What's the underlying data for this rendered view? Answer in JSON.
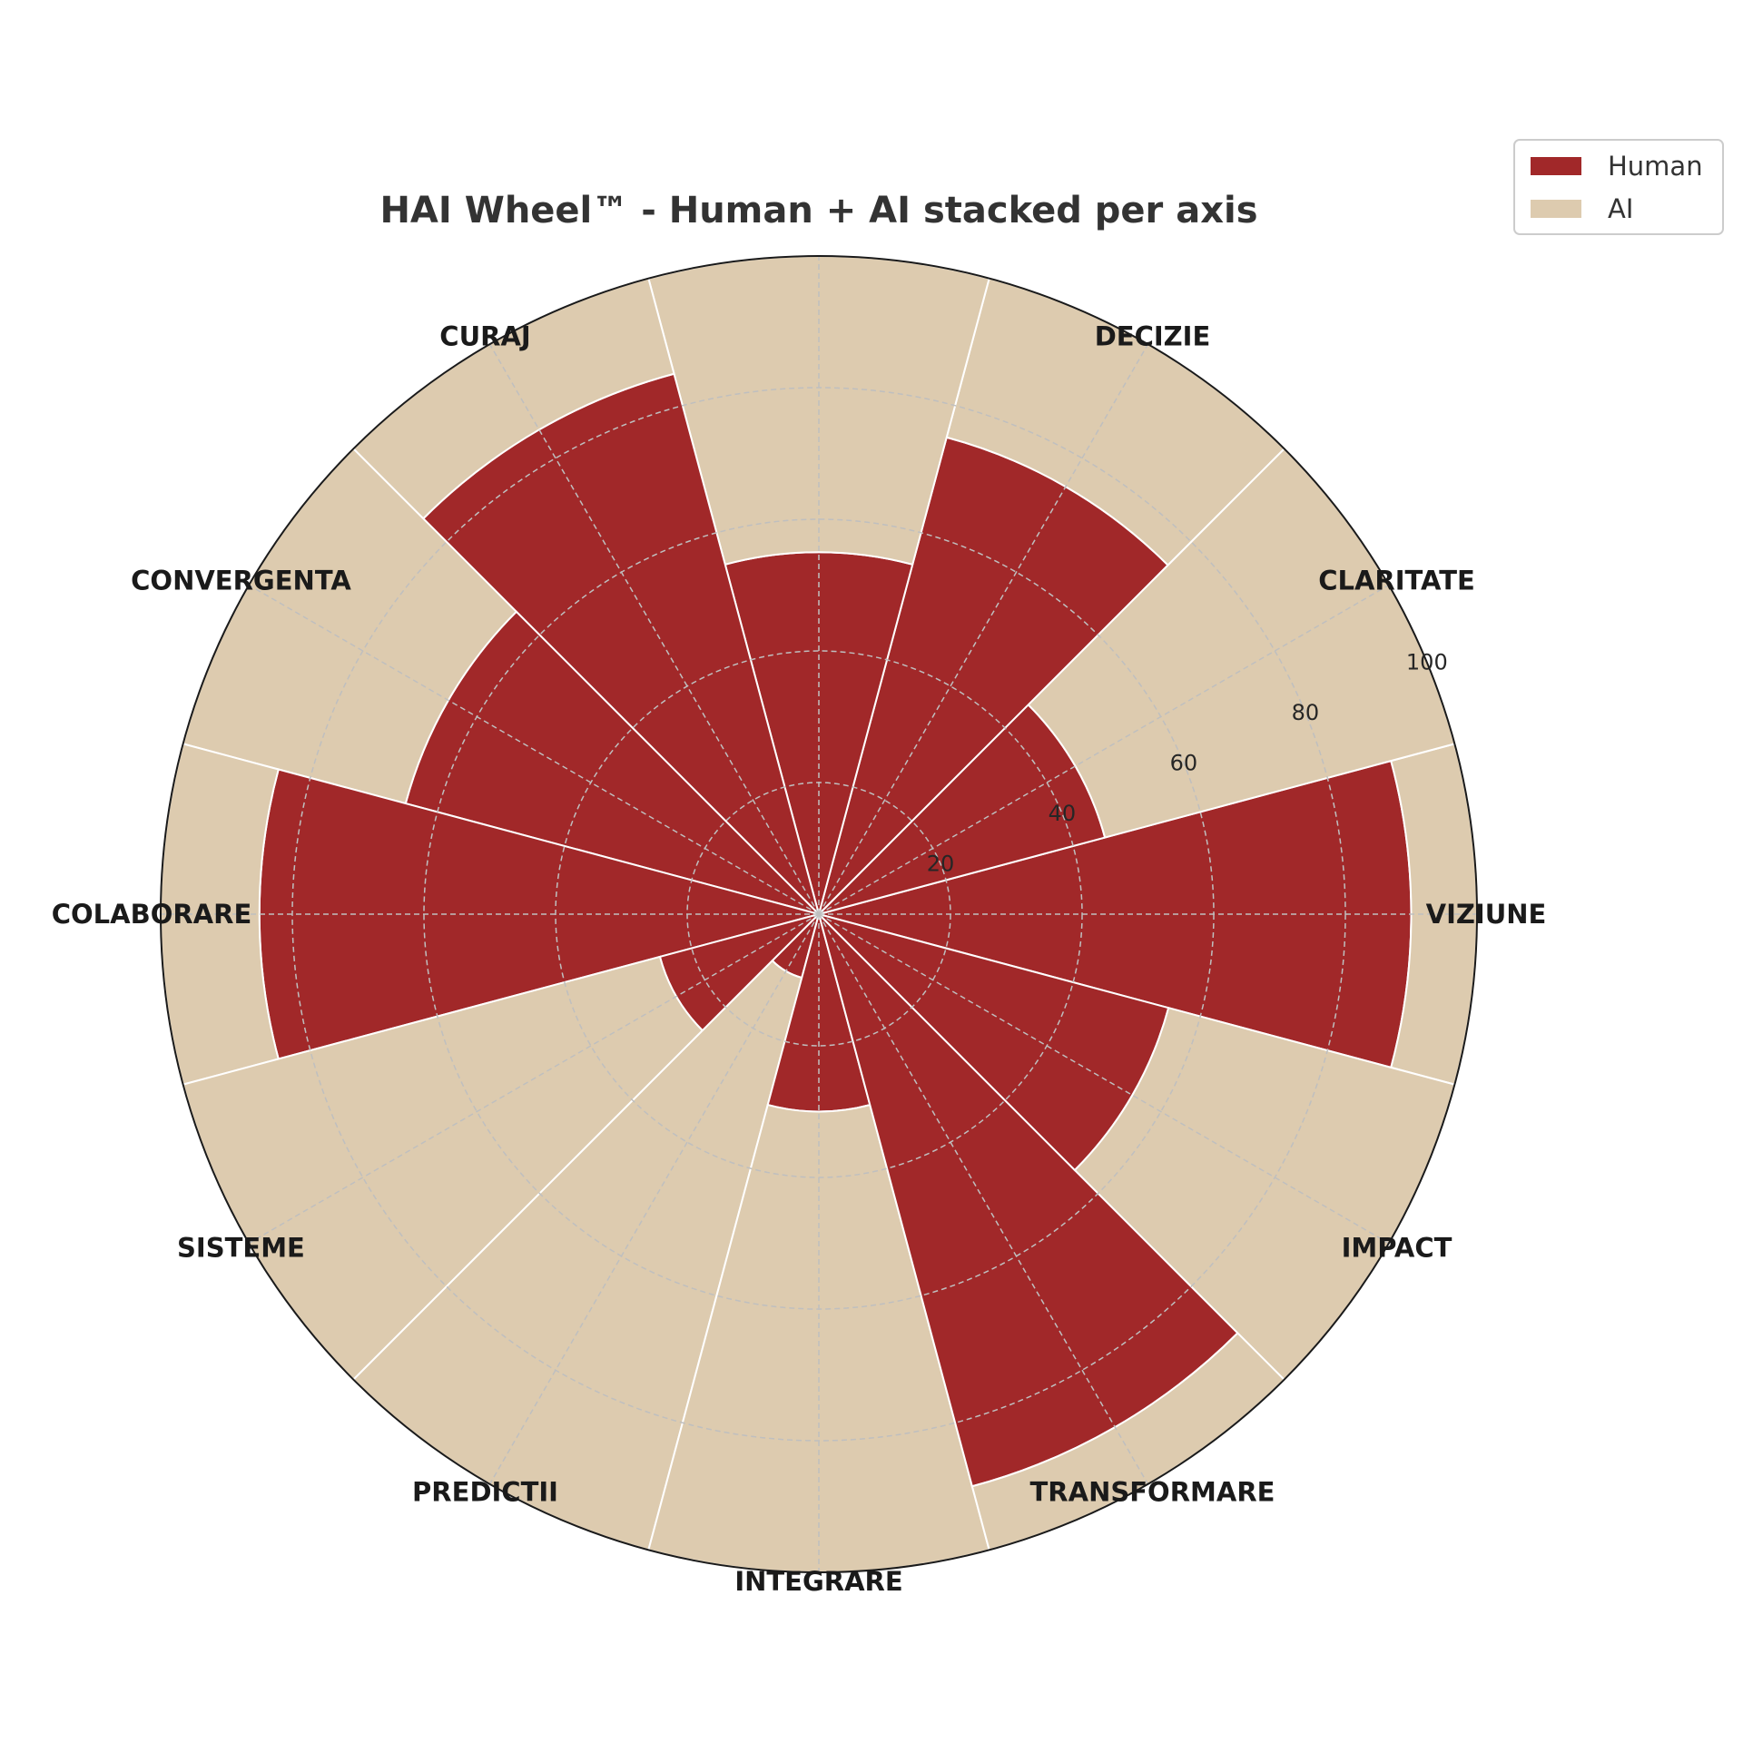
{
  "chart_data": {
    "type": "bar",
    "polar": true,
    "title": "HAI Wheel™ - Human + AI stacked per axis",
    "categories": [
      "VIZIUNE",
      "CLARITATE",
      "DECIZIE",
      "",
      "CURAJ",
      "CONVERGENTA",
      "COLABORARE",
      "SISTEME",
      "PREDICTII",
      "INTEGRARE",
      "TRANSFORMARE",
      "IMPACT"
    ],
    "series": [
      {
        "name": "Human",
        "color": "#a12829",
        "values": [
          90,
          45,
          75,
          55,
          85,
          65,
          85,
          25,
          10,
          30,
          90,
          55
        ]
      },
      {
        "name": "AI",
        "color": "#ddcbaf",
        "values": [
          10,
          55,
          25,
          45,
          15,
          35,
          15,
          75,
          90,
          70,
          10,
          45
        ]
      }
    ],
    "rlim": [
      0,
      100
    ],
    "rticks": [
      20,
      40,
      60,
      80,
      100
    ],
    "rtick_labels": [
      "20",
      "40",
      "60",
      "80",
      "100"
    ],
    "grid": true,
    "legend_placement": "top-right"
  }
}
